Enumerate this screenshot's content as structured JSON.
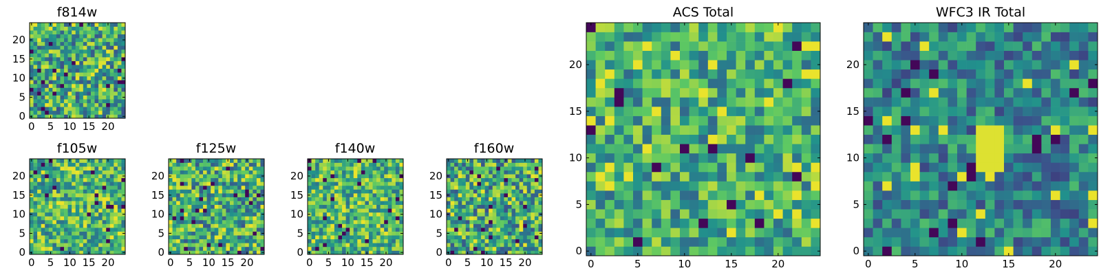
{
  "figure": {
    "description_colormap": "viridis",
    "colormap_stops": [
      "#440154",
      "#3b528b",
      "#21918c",
      "#5ec962",
      "#fde725"
    ]
  },
  "chart_data": [
    {
      "type": "heatmap",
      "id": "f814w",
      "title": "f814w",
      "grid_size": 25,
      "xlim": [
        -0.5,
        24.5
      ],
      "ylim": [
        -0.5,
        24.5
      ],
      "xticks": [
        0,
        5,
        10,
        15,
        20
      ],
      "yticks": [
        0,
        5,
        10,
        15,
        20
      ],
      "xtick_labels": [
        "0",
        "5",
        "10",
        "15",
        "20"
      ],
      "ytick_labels": [
        "0",
        "5",
        "10",
        "15",
        "20"
      ],
      "value_range": [
        0,
        1
      ],
      "mean_level": 0.6,
      "seed": 814,
      "spread": 0.35
    },
    {
      "type": "heatmap",
      "id": "f105w",
      "title": "f105w",
      "grid_size": 25,
      "xlim": [
        -0.5,
        24.5
      ],
      "ylim": [
        -0.5,
        24.5
      ],
      "xticks": [
        0,
        5,
        10,
        15,
        20
      ],
      "yticks": [
        0,
        5,
        10,
        15,
        20
      ],
      "xtick_labels": [
        "0",
        "5",
        "10",
        "15",
        "20"
      ],
      "ytick_labels": [
        "0",
        "5",
        "10",
        "15",
        "20"
      ],
      "value_range": [
        0,
        1
      ],
      "mean_level": 0.65,
      "seed": 105,
      "spread": 0.3
    },
    {
      "type": "heatmap",
      "id": "f125w",
      "title": "f125w",
      "grid_size": 25,
      "xlim": [
        -0.5,
        24.5
      ],
      "ylim": [
        -0.5,
        24.5
      ],
      "xticks": [
        0,
        5,
        10,
        15,
        20
      ],
      "yticks": [
        0,
        5,
        10,
        15,
        20
      ],
      "xtick_labels": [
        "0",
        "5",
        "10",
        "15",
        "20"
      ],
      "ytick_labels": [
        "0",
        "5",
        "10",
        "15",
        "20"
      ],
      "value_range": [
        0,
        1
      ],
      "mean_level": 0.62,
      "seed": 125,
      "spread": 0.35
    },
    {
      "type": "heatmap",
      "id": "f140w",
      "title": "f140w",
      "grid_size": 25,
      "xlim": [
        -0.5,
        24.5
      ],
      "ylim": [
        -0.5,
        24.5
      ],
      "xticks": [
        0,
        5,
        10,
        15,
        20
      ],
      "yticks": [
        0,
        5,
        10,
        15,
        20
      ],
      "xtick_labels": [
        "0",
        "5",
        "10",
        "15",
        "20"
      ],
      "ytick_labels": [
        "0",
        "5",
        "10",
        "15",
        "20"
      ],
      "value_range": [
        0,
        1
      ],
      "mean_level": 0.66,
      "seed": 140,
      "spread": 0.3
    },
    {
      "type": "heatmap",
      "id": "f160w",
      "title": "f160w",
      "grid_size": 25,
      "xlim": [
        -0.5,
        24.5
      ],
      "ylim": [
        -0.5,
        24.5
      ],
      "xticks": [
        0,
        5,
        10,
        15,
        20
      ],
      "yticks": [
        0,
        5,
        10,
        15,
        20
      ],
      "xtick_labels": [
        "0",
        "5",
        "10",
        "15",
        "20"
      ],
      "ytick_labels": [
        "0",
        "5",
        "10",
        "15",
        "20"
      ],
      "value_range": [
        0,
        1
      ],
      "mean_level": 0.6,
      "seed": 160,
      "spread": 0.35
    },
    {
      "type": "heatmap",
      "id": "acs_total",
      "title": "ACS Total",
      "grid_size": 25,
      "xlim": [
        -0.5,
        24.5
      ],
      "ylim": [
        -0.5,
        24.5
      ],
      "xticks": [
        0,
        5,
        10,
        15,
        20
      ],
      "yticks": [
        0,
        5,
        10,
        15,
        20
      ],
      "xtick_labels": [
        "0",
        "5",
        "10",
        "15",
        "20"
      ],
      "ytick_labels": [
        "0",
        "5",
        "10",
        "15",
        "20"
      ],
      "value_range": [
        0,
        1
      ],
      "mean_level": 0.62,
      "seed": 2001,
      "spread": 0.28
    },
    {
      "type": "heatmap",
      "id": "wfc3_ir_total",
      "title": "WFC3 IR Total",
      "grid_size": 25,
      "xlim": [
        -0.5,
        24.5
      ],
      "ylim": [
        -0.5,
        24.5
      ],
      "xticks": [
        0,
        5,
        10,
        15,
        20
      ],
      "yticks": [
        0,
        5,
        10,
        15,
        20
      ],
      "xtick_labels": [
        "0",
        "5",
        "10",
        "15",
        "20"
      ],
      "ytick_labels": [
        "0",
        "5",
        "10",
        "15",
        "20"
      ],
      "value_range": [
        0,
        1
      ],
      "mean_level": 0.45,
      "seed": 3001,
      "spread": 0.25,
      "bright_feature": {
        "x": [
          12,
          14
        ],
        "y": [
          9,
          13
        ],
        "value": 0.95
      }
    }
  ]
}
